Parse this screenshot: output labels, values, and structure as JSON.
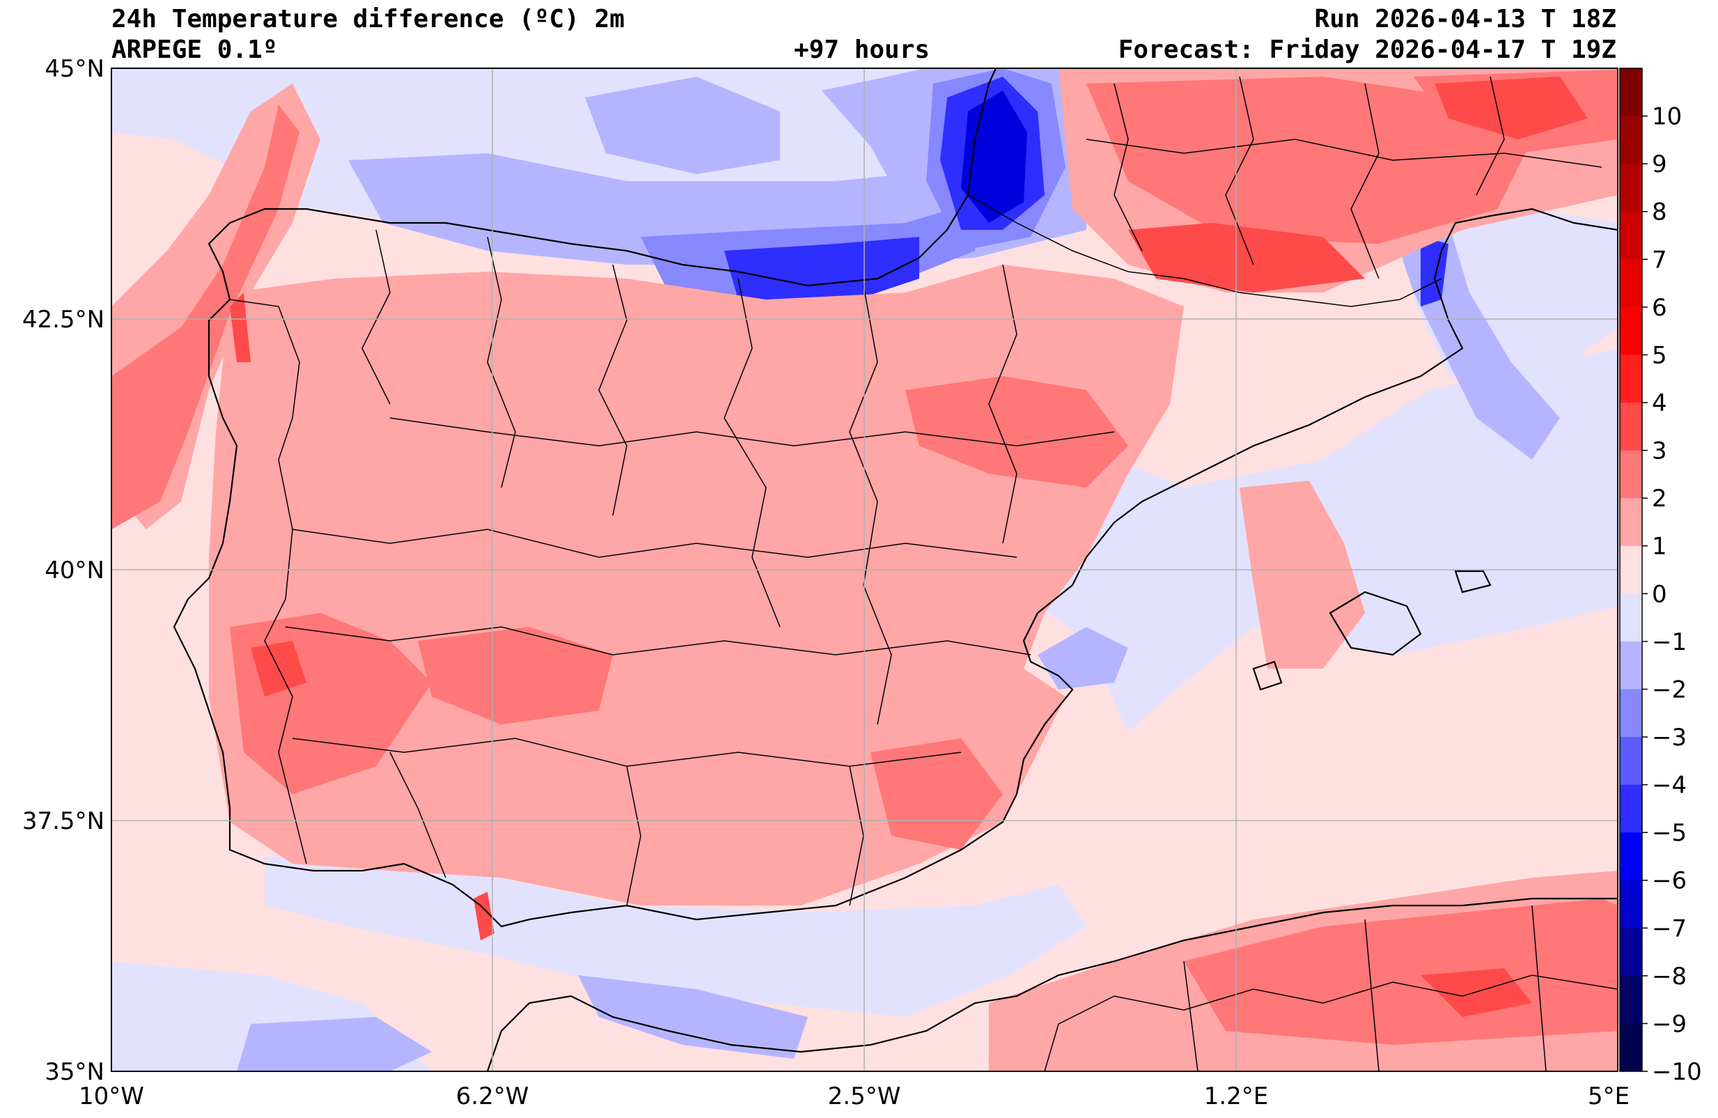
{
  "header": {
    "title": "24h Temperature difference (ºC) 2m",
    "model": "ARPEGE 0.1º",
    "lead": "+97 hours",
    "run": "Run 2026-04-13 T 18Z",
    "forecast": "Forecast: Friday 2026-04-17 T 19Z"
  },
  "axes": {
    "lat_labels": [
      "45°N",
      "42.5°N",
      "40°N",
      "37.5°N",
      "35°N"
    ],
    "lon_labels": [
      "10°W",
      "6.2°W",
      "2.5°W",
      "1.2°E",
      "5°E"
    ]
  },
  "colorbar": {
    "labels": [
      "10",
      "9",
      "8",
      "7",
      "6",
      "5",
      "4",
      "3",
      "2",
      "1",
      "0",
      "−1",
      "−2",
      "−3",
      "−4",
      "−5",
      "−6",
      "−7",
      "−8",
      "−9",
      "−10"
    ],
    "colors": [
      "#800000",
      "#990000",
      "#b20000",
      "#cc0000",
      "#e50000",
      "#ff0000",
      "#ff2020",
      "#ff4a4a",
      "#ff7777",
      "#ffa6a6",
      "#ffe0e0",
      "#e2e2ff",
      "#b5b5ff",
      "#8888ff",
      "#5c5cff",
      "#2e2eff",
      "#0000ff",
      "#0000cc",
      "#000099",
      "#000066",
      "#00004d"
    ]
  },
  "colors": {
    "sea_neutral": "#ffe0e0",
    "warm1": "#ffa6a6",
    "warm2": "#ff7777",
    "warm3": "#ff4a4a",
    "cool1": "#e2e2ff",
    "cool2": "#b5b5ff",
    "cool3": "#8888ff",
    "cool4": "#2e2eff",
    "cool5": "#0000dd"
  }
}
